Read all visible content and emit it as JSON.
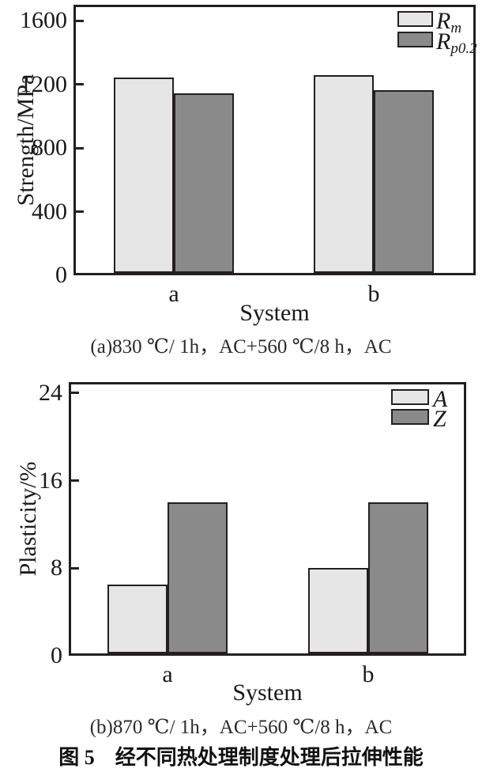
{
  "figure_title": "图 5　经不同热处理制度处理后拉伸性能",
  "colors": {
    "bar_light": "#e6e6e6",
    "bar_dark": "#8a8a8a",
    "line": "#231f20",
    "text": "#1a1a1a"
  },
  "chart_data": [
    {
      "type": "bar",
      "panel": "a",
      "title": "(a)830 ℃/ 1h，AC+560 ℃/8 h，AC",
      "xlabel": "System",
      "ylabel": "Strength/MPa",
      "categories": [
        "a",
        "b"
      ],
      "series": [
        {
          "name": "Rm",
          "legend_main": "R",
          "legend_sub": "m",
          "shade": "light",
          "values": [
            1245,
            1260
          ]
        },
        {
          "name": "Rp0.2",
          "legend_main": "R",
          "legend_sub": "p0.2",
          "shade": "dark",
          "values": [
            1145,
            1165
          ]
        }
      ],
      "yticks": [
        0,
        400,
        800,
        1200,
        1600
      ],
      "ylim": [
        0,
        1700
      ],
      "grid": false,
      "legend_position": "top-right"
    },
    {
      "type": "bar",
      "panel": "b",
      "title": "(b)870 ℃/ 1h，AC+560 ℃/8 h，AC",
      "xlabel": "System",
      "ylabel": "Plasticity/%",
      "categories": [
        "a",
        "b"
      ],
      "series": [
        {
          "name": "A",
          "legend_main": "A",
          "legend_sub": "",
          "shade": "light",
          "values": [
            6.5,
            8
          ]
        },
        {
          "name": "Z",
          "legend_main": "Z",
          "legend_sub": "",
          "shade": "dark",
          "values": [
            14,
            14
          ]
        }
      ],
      "yticks": [
        0,
        8,
        16,
        24
      ],
      "ylim": [
        0,
        25
      ],
      "grid": false,
      "legend_position": "top-right"
    }
  ]
}
